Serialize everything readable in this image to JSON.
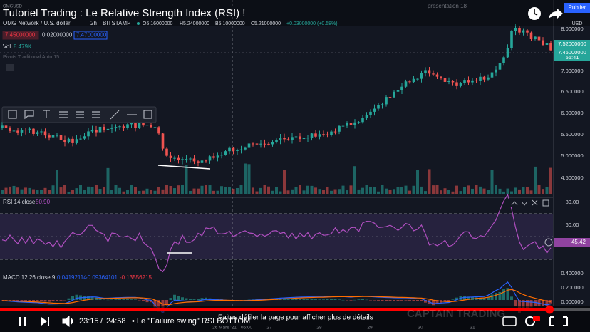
{
  "video": {
    "title": "Tutoriel Trading : Le Relative Strength Index (RSI) !",
    "top_right": "presentation 18",
    "publish": "Publier",
    "time_current": "23:15",
    "time_separator": "/",
    "time_total": "24:58",
    "chapter": "• Le \"Failure swing\" RSI BOTTOM",
    "scroll_hint": "Faites défiler la page pour afficher plus de détails",
    "watermark": "CAPTAIN TRADING"
  },
  "chart": {
    "ticker": "OMGUSD",
    "symbol": "OMG Network / U.S. dollar",
    "interval": "2h",
    "exchange": "BITSTAMP",
    "ohlc": [
      "O5.16000000",
      "H5.24000000",
      "B5.10000000",
      "C5.21000000",
      "+0.03000000 (+0.58%)"
    ],
    "bid": "7.45000000",
    "spread": "0.02000000",
    "ask": "7.47000000",
    "volume_label": "Vol",
    "volume": "8.479K",
    "indicator": "Pivots Traditional Auto 15",
    "currency": "USD",
    "price_axis": [
      "8.000000",
      "7.000000",
      "6.500000",
      "6.000000",
      "5.500000",
      "5.000000",
      "4.500000"
    ],
    "price_tags": [
      "7.52000000",
      "7.46000000",
      "55:41"
    ],
    "dates": [
      "26 Mars '21",
      "06:00",
      "27",
      "28",
      "29",
      "30",
      "31"
    ],
    "rsi": {
      "label": "RSI 14 close",
      "value": "50.90",
      "axis": [
        "80.00",
        "60.00"
      ],
      "tag": "45.42"
    },
    "macd": {
      "label": "MACD 12 26 close 9",
      "values": [
        "0.04192114",
        "-0.09364101",
        "-0.13556215"
      ],
      "axis": [
        "0.400000",
        "0.200000",
        "0.000000"
      ]
    }
  }
}
